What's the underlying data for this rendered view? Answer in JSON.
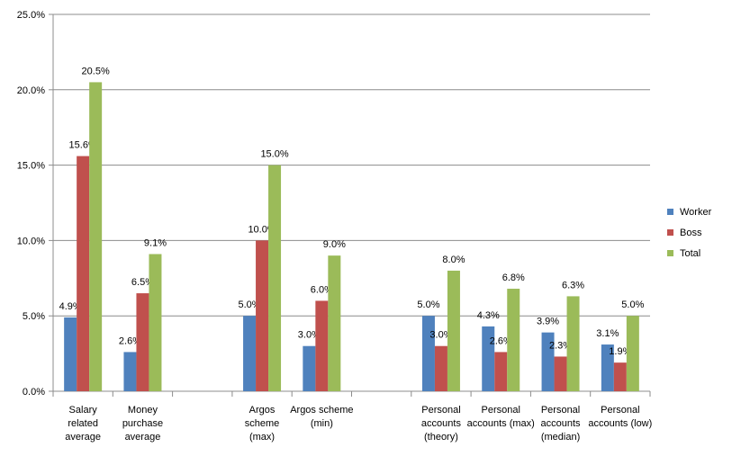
{
  "chart_data": {
    "type": "bar",
    "title": "",
    "xlabel": "",
    "ylabel": "",
    "ylim": [
      0,
      25
    ],
    "y_ticks": [
      "0.0%",
      "5.0%",
      "10.0%",
      "15.0%",
      "20.0%",
      "25.0%"
    ],
    "grid": true,
    "legend_position": "right",
    "categories": [
      [
        "Salary",
        "related",
        "average"
      ],
      [
        "Money",
        "purchase",
        "average"
      ],
      [],
      [
        "Argos",
        "scheme",
        "(max)"
      ],
      [
        "Argos scheme",
        "(min)"
      ],
      [],
      [
        "Personal",
        "accounts",
        "(theory)"
      ],
      [
        "Personal",
        "accounts (max)"
      ],
      [
        "Personal",
        "accounts",
        "(median)"
      ],
      [
        "Personal",
        "accounts (low)"
      ]
    ],
    "series": [
      {
        "name": "Worker",
        "color": "#4f81bd",
        "values": [
          4.9,
          2.6,
          null,
          5.0,
          3.0,
          null,
          5.0,
          4.3,
          3.9,
          3.1
        ],
        "labels": [
          "4.9%",
          "2.6%",
          "",
          "5.0%",
          "3.0%",
          "",
          "5.0%",
          "4.3%",
          "3.9%",
          "3.1%"
        ]
      },
      {
        "name": "Boss",
        "color": "#c0504d",
        "values": [
          15.6,
          6.5,
          null,
          10.0,
          6.0,
          null,
          3.0,
          2.6,
          2.3,
          1.9
        ],
        "labels": [
          "15.6%",
          "6.5%",
          "",
          "10.0%",
          "6.0%",
          "",
          "3.0%",
          "2.6%",
          "2.3%",
          "1.9%"
        ]
      },
      {
        "name": "Total",
        "color": "#9bbb59",
        "values": [
          20.5,
          9.1,
          null,
          15.0,
          9.0,
          null,
          8.0,
          6.8,
          6.3,
          5.0
        ],
        "labels": [
          "20.5%",
          "9.1%",
          "",
          "15.0%",
          "9.0%",
          "",
          "8.0%",
          "6.8%",
          "6.3%",
          "5.0%"
        ]
      }
    ]
  }
}
